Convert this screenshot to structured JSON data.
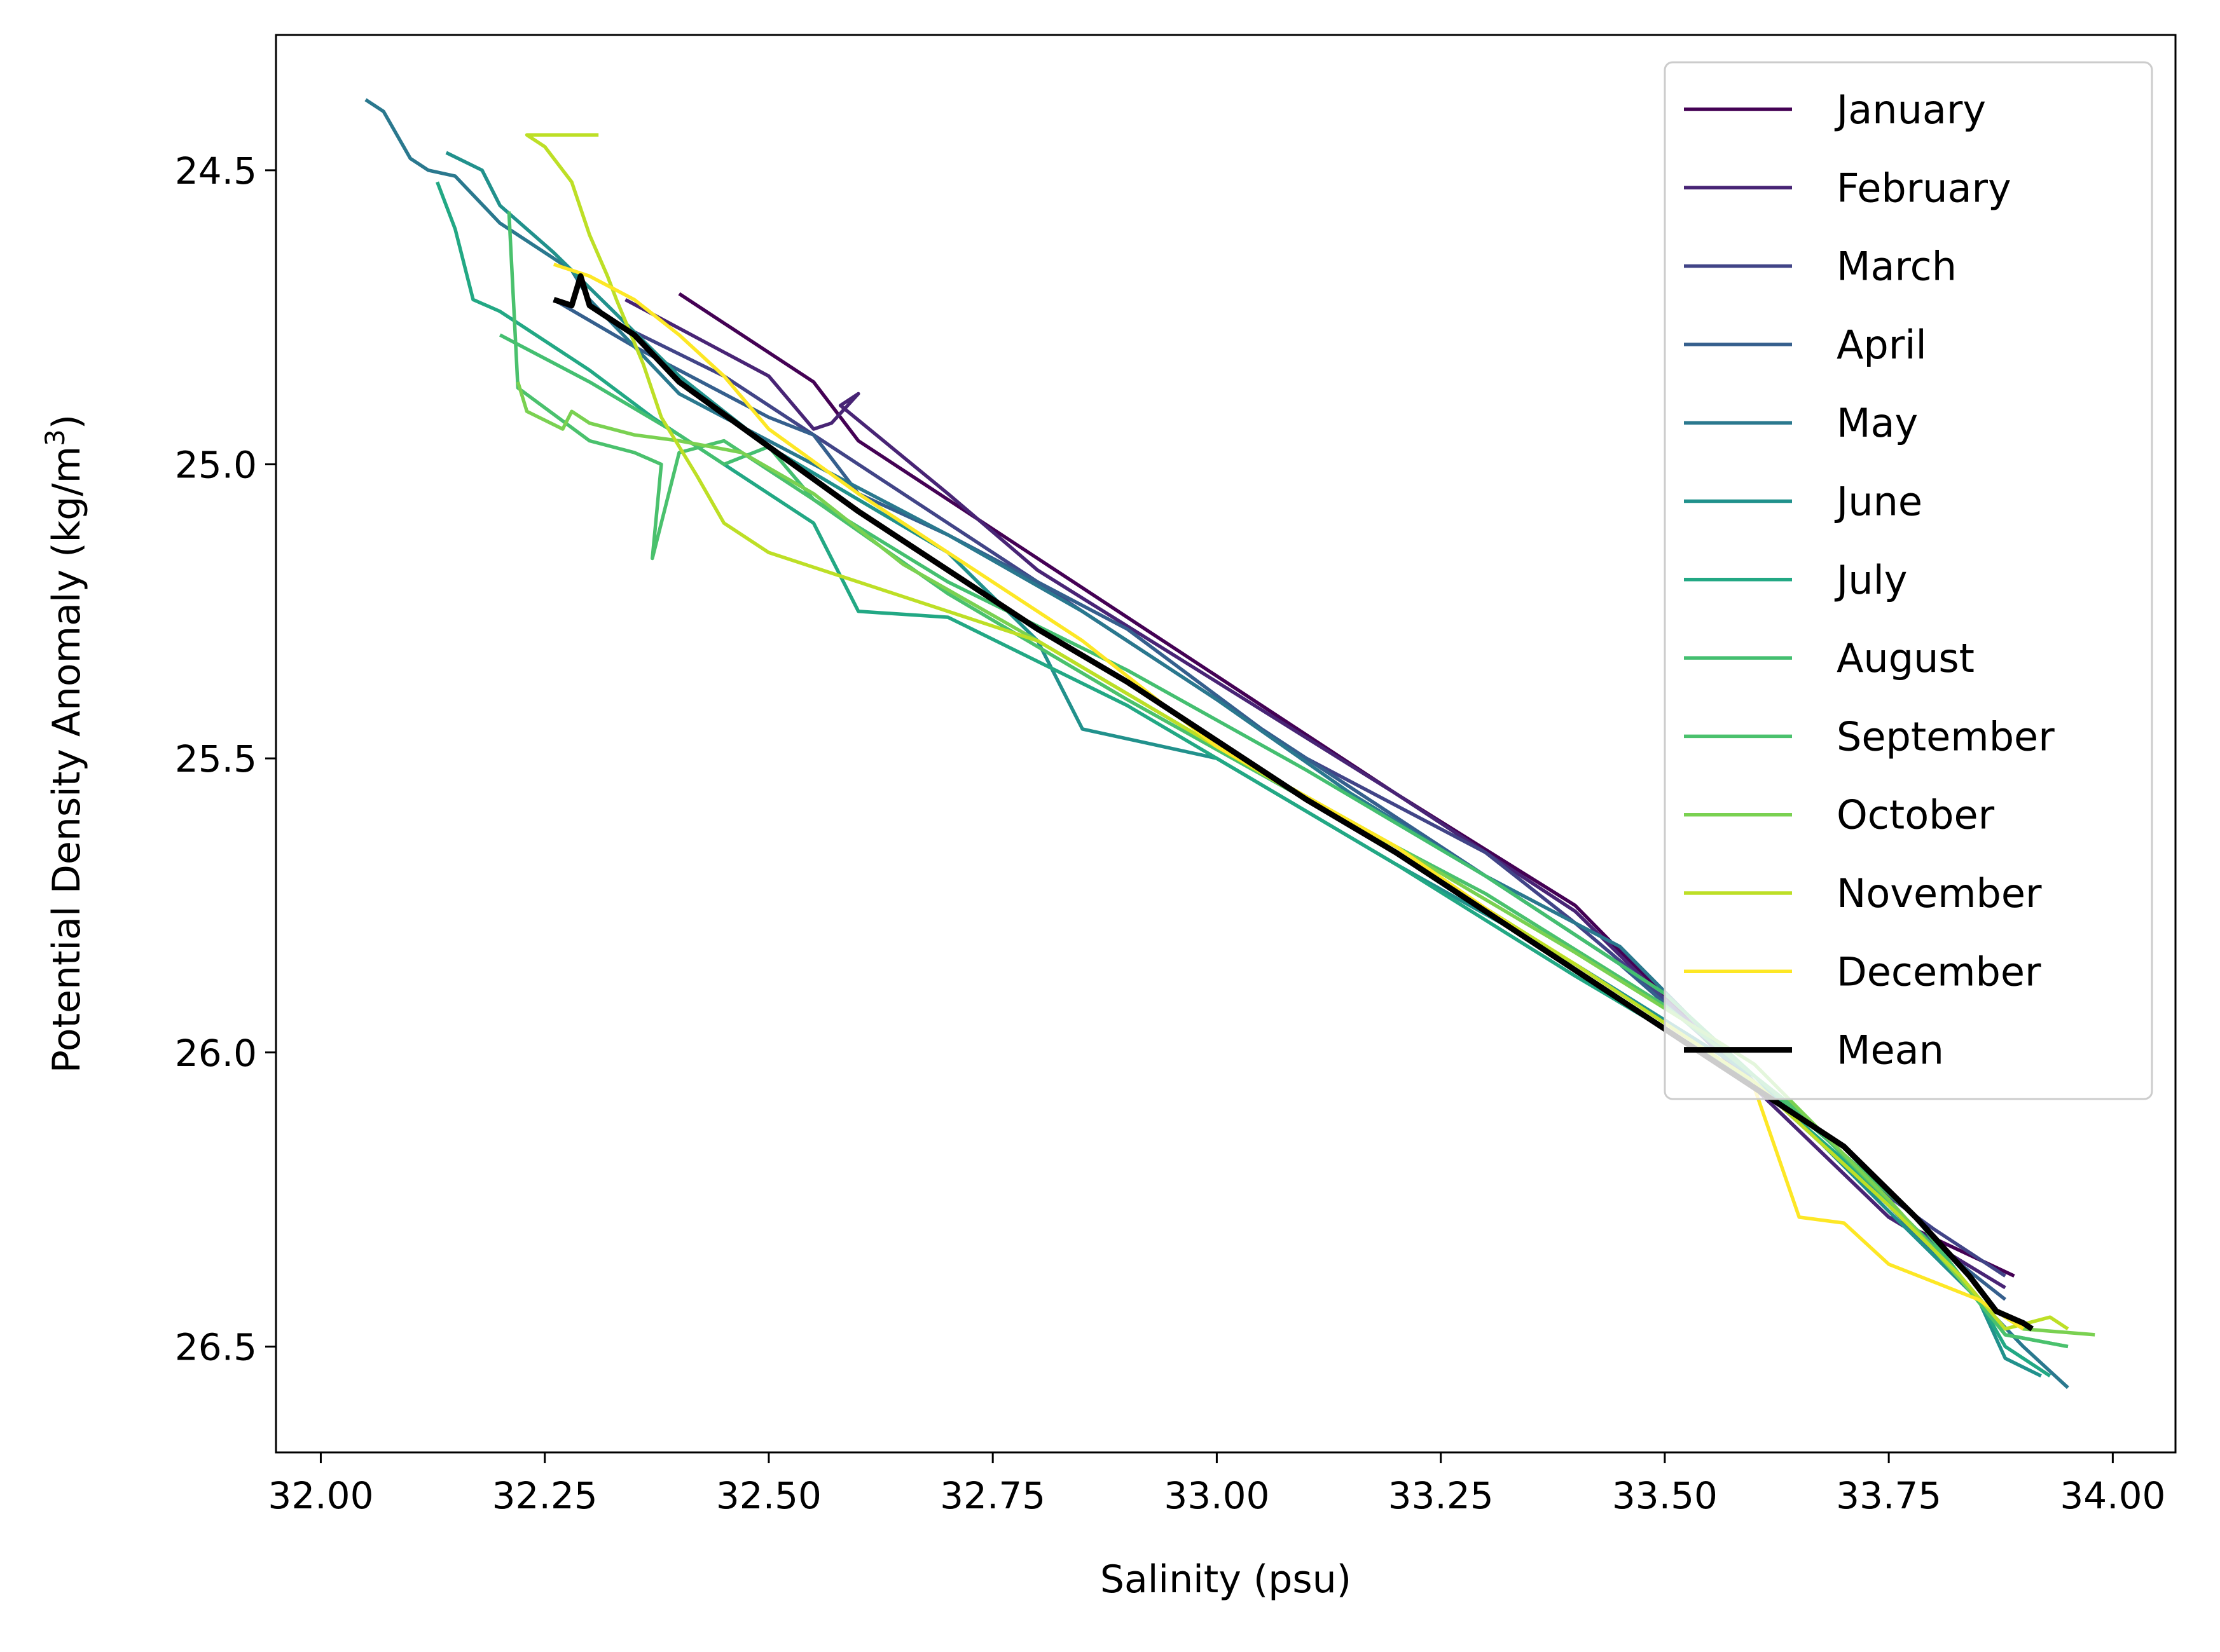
{
  "chart_data": {
    "type": "line",
    "title": "",
    "xlabel": "Salinity (psu)",
    "ylabel_main": "Potential Density Anomaly (kg/m",
    "ylabel_sup": "3",
    "ylabel_close": ")",
    "xlim": [
      31.95,
      34.07
    ],
    "ylim": [
      26.68,
      24.27
    ],
    "y_inverted": true,
    "xticks": [
      32.0,
      32.25,
      32.5,
      32.75,
      33.0,
      33.25,
      33.5,
      33.75,
      34.0
    ],
    "xtick_labels": [
      "32.00",
      "32.25",
      "32.50",
      "32.75",
      "33.00",
      "33.25",
      "33.50",
      "33.75",
      "34.00"
    ],
    "yticks": [
      24.5,
      25.0,
      25.5,
      26.0,
      26.5
    ],
    "ytick_labels": [
      "24.5",
      "25.0",
      "25.5",
      "26.0",
      "26.5"
    ],
    "grid": false,
    "legend_position": "top-right",
    "series": [
      {
        "name": "January",
        "color": "#440154",
        "width": 1,
        "points": [
          [
            32.4,
            24.71
          ],
          [
            32.55,
            24.86
          ],
          [
            32.6,
            24.96
          ],
          [
            32.7,
            25.06
          ],
          [
            32.8,
            25.16
          ],
          [
            33.0,
            25.36
          ],
          [
            33.2,
            25.56
          ],
          [
            33.4,
            25.75
          ],
          [
            33.6,
            26.06
          ],
          [
            33.75,
            26.28
          ],
          [
            33.89,
            26.38
          ]
        ]
      },
      {
        "name": "February",
        "color": "#482475",
        "width": 1,
        "points": [
          [
            32.34,
            24.72
          ],
          [
            32.5,
            24.85
          ],
          [
            32.55,
            24.94
          ],
          [
            32.57,
            24.93
          ],
          [
            32.6,
            24.88
          ],
          [
            32.58,
            24.9
          ],
          [
            32.7,
            25.05
          ],
          [
            32.8,
            25.18
          ],
          [
            33.0,
            25.37
          ],
          [
            33.2,
            25.56
          ],
          [
            33.4,
            25.76
          ],
          [
            33.6,
            26.06
          ],
          [
            33.75,
            26.28
          ],
          [
            33.88,
            26.4
          ]
        ]
      },
      {
        "name": "March",
        "color": "#414487",
        "width": 1,
        "points": [
          [
            32.33,
            24.76
          ],
          [
            32.45,
            24.85
          ],
          [
            32.5,
            24.9
          ],
          [
            32.7,
            25.1
          ],
          [
            32.9,
            25.3
          ],
          [
            33.0,
            25.4
          ],
          [
            33.1,
            25.5
          ],
          [
            33.3,
            25.66
          ],
          [
            33.4,
            25.78
          ],
          [
            33.47,
            25.87
          ],
          [
            33.5,
            25.91
          ],
          [
            33.6,
            26.05
          ],
          [
            33.7,
            26.19
          ],
          [
            33.8,
            26.3
          ],
          [
            33.88,
            26.38
          ]
        ]
      },
      {
        "name": "April",
        "color": "#355f8d",
        "width": 1,
        "points": [
          [
            32.26,
            24.72
          ],
          [
            32.35,
            24.8
          ],
          [
            32.5,
            24.92
          ],
          [
            32.55,
            24.95
          ],
          [
            32.6,
            25.05
          ],
          [
            32.7,
            25.12
          ],
          [
            32.9,
            25.28
          ],
          [
            33.05,
            25.45
          ],
          [
            33.15,
            25.55
          ],
          [
            33.25,
            25.65
          ],
          [
            33.45,
            25.85
          ],
          [
            33.6,
            26.05
          ],
          [
            33.78,
            26.3
          ],
          [
            33.88,
            26.42
          ]
        ]
      },
      {
        "name": "May",
        "color": "#2a788e",
        "width": 1,
        "points": [
          [
            32.05,
            24.38
          ],
          [
            32.07,
            24.4
          ],
          [
            32.1,
            24.48
          ],
          [
            32.12,
            24.5
          ],
          [
            32.15,
            24.51
          ],
          [
            32.2,
            24.59
          ],
          [
            32.28,
            24.67
          ],
          [
            32.3,
            24.72
          ],
          [
            32.35,
            24.8
          ],
          [
            32.4,
            24.88
          ],
          [
            32.55,
            25.0
          ],
          [
            32.7,
            25.12
          ],
          [
            32.85,
            25.25
          ],
          [
            33.0,
            25.4
          ],
          [
            33.15,
            25.56
          ],
          [
            33.3,
            25.7
          ],
          [
            33.45,
            25.82
          ],
          [
            33.6,
            26.05
          ],
          [
            33.75,
            26.26
          ],
          [
            33.85,
            26.42
          ],
          [
            33.9,
            26.5
          ],
          [
            33.95,
            26.57
          ]
        ]
      },
      {
        "name": "June",
        "color": "#21918c",
        "width": 1,
        "points": [
          [
            32.14,
            24.47
          ],
          [
            32.18,
            24.5
          ],
          [
            32.2,
            24.56
          ],
          [
            32.26,
            24.64
          ],
          [
            32.32,
            24.73
          ],
          [
            32.4,
            24.85
          ],
          [
            32.5,
            24.97
          ],
          [
            32.7,
            25.15
          ],
          [
            32.8,
            25.3
          ],
          [
            32.85,
            25.45
          ],
          [
            33.0,
            25.5
          ],
          [
            33.2,
            25.68
          ],
          [
            33.4,
            25.85
          ],
          [
            33.6,
            26.04
          ],
          [
            33.75,
            26.27
          ],
          [
            33.85,
            26.42
          ],
          [
            33.88,
            26.52
          ],
          [
            33.92,
            26.55
          ]
        ]
      },
      {
        "name": "July",
        "color": "#22a884",
        "width": 1,
        "points": [
          [
            32.13,
            24.52
          ],
          [
            32.15,
            24.6
          ],
          [
            32.17,
            24.72
          ],
          [
            32.2,
            24.74
          ],
          [
            32.24,
            24.78
          ],
          [
            32.3,
            24.84
          ],
          [
            32.37,
            24.92
          ],
          [
            32.45,
            25.0
          ],
          [
            32.55,
            25.1
          ],
          [
            32.6,
            25.25
          ],
          [
            32.7,
            25.26
          ],
          [
            32.9,
            25.41
          ],
          [
            33.0,
            25.5
          ],
          [
            33.2,
            25.68
          ],
          [
            33.4,
            25.87
          ],
          [
            33.6,
            26.05
          ],
          [
            33.75,
            26.25
          ],
          [
            33.85,
            26.42
          ],
          [
            33.88,
            26.5
          ],
          [
            33.93,
            26.55
          ]
        ]
      },
      {
        "name": "August",
        "color": "#44bf70",
        "width": 1,
        "points": [
          [
            32.2,
            24.78
          ],
          [
            32.3,
            24.86
          ],
          [
            32.4,
            24.95
          ],
          [
            32.45,
            25.0
          ],
          [
            32.5,
            24.97
          ],
          [
            32.55,
            25.06
          ],
          [
            32.7,
            25.2
          ],
          [
            32.9,
            25.35
          ],
          [
            33.1,
            25.52
          ],
          [
            33.3,
            25.7
          ],
          [
            33.5,
            25.9
          ],
          [
            33.6,
            26.04
          ],
          [
            33.78,
            26.28
          ],
          [
            33.88,
            26.48
          ],
          [
            33.95,
            26.5
          ]
        ]
      },
      {
        "name": "September",
        "color": "#4ac16d",
        "width": 1,
        "points": [
          [
            32.21,
            24.57
          ],
          [
            32.22,
            24.87
          ],
          [
            32.3,
            24.96
          ],
          [
            32.35,
            24.98
          ],
          [
            32.38,
            25.0
          ],
          [
            32.37,
            25.16
          ],
          [
            32.4,
            24.98
          ],
          [
            32.45,
            24.96
          ],
          [
            32.55,
            25.06
          ],
          [
            32.7,
            25.22
          ],
          [
            32.9,
            25.4
          ],
          [
            33.1,
            25.57
          ],
          [
            33.3,
            25.73
          ],
          [
            33.5,
            25.92
          ],
          [
            33.65,
            26.1
          ],
          [
            33.8,
            26.33
          ],
          [
            33.88,
            26.48
          ],
          [
            33.95,
            26.5
          ]
        ]
      },
      {
        "name": "October",
        "color": "#7ad151",
        "width": 1,
        "points": [
          [
            32.22,
            24.86
          ],
          [
            32.23,
            24.91
          ],
          [
            32.27,
            24.94
          ],
          [
            32.28,
            24.91
          ],
          [
            32.3,
            24.93
          ],
          [
            32.35,
            24.95
          ],
          [
            32.4,
            24.96
          ],
          [
            32.47,
            24.98
          ],
          [
            32.55,
            25.05
          ],
          [
            32.65,
            25.17
          ],
          [
            32.8,
            25.3
          ],
          [
            33.0,
            25.48
          ],
          [
            33.2,
            25.65
          ],
          [
            33.4,
            25.83
          ],
          [
            33.6,
            26.02
          ],
          [
            33.75,
            26.25
          ],
          [
            33.85,
            26.42
          ],
          [
            33.9,
            26.47
          ],
          [
            33.98,
            26.48
          ]
        ]
      },
      {
        "name": "November",
        "color": "#bddf26",
        "width": 1,
        "points": [
          [
            32.31,
            24.44
          ],
          [
            32.23,
            24.44
          ],
          [
            32.25,
            24.46
          ],
          [
            32.28,
            24.52
          ],
          [
            32.3,
            24.61
          ],
          [
            32.32,
            24.68
          ],
          [
            32.33,
            24.72
          ],
          [
            32.36,
            24.83
          ],
          [
            32.38,
            24.92
          ],
          [
            32.42,
            25.02
          ],
          [
            32.45,
            25.1
          ],
          [
            32.5,
            25.15
          ],
          [
            32.6,
            25.2
          ],
          [
            32.8,
            25.3
          ],
          [
            33.0,
            25.48
          ],
          [
            33.2,
            25.66
          ],
          [
            33.4,
            25.85
          ],
          [
            33.6,
            26.05
          ],
          [
            33.75,
            26.26
          ],
          [
            33.83,
            26.38
          ],
          [
            33.88,
            26.47
          ],
          [
            33.93,
            26.45
          ],
          [
            33.95,
            26.47
          ]
        ]
      },
      {
        "name": "December",
        "color": "#fde725",
        "width": 1,
        "points": [
          [
            32.26,
            24.66
          ],
          [
            32.3,
            24.68
          ],
          [
            32.35,
            24.72
          ],
          [
            32.4,
            24.78
          ],
          [
            32.45,
            24.85
          ],
          [
            32.5,
            24.94
          ],
          [
            32.6,
            25.05
          ],
          [
            32.7,
            25.15
          ],
          [
            32.85,
            25.3
          ],
          [
            33.0,
            25.48
          ],
          [
            33.2,
            25.65
          ],
          [
            33.4,
            25.86
          ],
          [
            33.6,
            26.06
          ],
          [
            33.65,
            26.28
          ],
          [
            33.7,
            26.29
          ],
          [
            33.75,
            26.36
          ],
          [
            33.85,
            26.42
          ],
          [
            33.9,
            26.47
          ]
        ]
      },
      {
        "name": "Mean",
        "color": "#000000",
        "width": 2,
        "points": [
          [
            32.26,
            24.72
          ],
          [
            32.28,
            24.73
          ],
          [
            32.29,
            24.68
          ],
          [
            32.3,
            24.73
          ],
          [
            32.35,
            24.78
          ],
          [
            32.4,
            24.86
          ],
          [
            32.5,
            24.97
          ],
          [
            32.6,
            25.08
          ],
          [
            32.7,
            25.18
          ],
          [
            32.8,
            25.28
          ],
          [
            32.9,
            25.37
          ],
          [
            33.0,
            25.47
          ],
          [
            33.1,
            25.57
          ],
          [
            33.2,
            25.66
          ],
          [
            33.3,
            25.76
          ],
          [
            33.4,
            25.86
          ],
          [
            33.5,
            25.96
          ],
          [
            33.6,
            26.06
          ],
          [
            33.7,
            26.16
          ],
          [
            33.78,
            26.28
          ],
          [
            33.84,
            26.38
          ],
          [
            33.87,
            26.44
          ],
          [
            33.9,
            26.46
          ],
          [
            33.91,
            26.47
          ]
        ]
      }
    ]
  }
}
